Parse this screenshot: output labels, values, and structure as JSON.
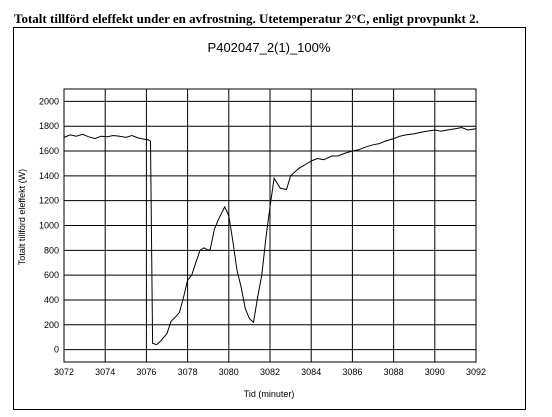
{
  "caption": "Totalt tillförd eleffekt under en avfrostning. Utetemperatur 2°C, enligt provpunkt 2.",
  "chart_data": {
    "type": "line",
    "title": "P402047_2(1)_100%",
    "xlabel": "Tid (minuter)",
    "ylabel": "Totalt tillförd eleffekt (W)",
    "xlim": [
      3072,
      3092
    ],
    "ylim": [
      -100,
      2100
    ],
    "x_ticks": [
      3072,
      3074,
      3076,
      3078,
      3080,
      3082,
      3084,
      3086,
      3088,
      3090,
      3092
    ],
    "y_ticks": [
      0,
      200,
      400,
      600,
      800,
      1000,
      1200,
      1400,
      1600,
      1800,
      2000
    ],
    "grid": true,
    "line_color": "#000000",
    "series": [
      {
        "x": [
          3072.0,
          3072.3,
          3072.6,
          3072.9,
          3073.2,
          3073.5,
          3073.8,
          3074.1,
          3074.4,
          3074.7,
          3075.0,
          3075.3,
          3075.6,
          3075.9,
          3076.1,
          3076.2,
          3076.3,
          3076.5,
          3076.7,
          3077.0,
          3077.2,
          3077.4,
          3077.6,
          3077.8,
          3078.0,
          3078.2,
          3078.4,
          3078.6,
          3078.8,
          3079.0,
          3079.1,
          3079.3,
          3079.5,
          3079.8,
          3080.0,
          3080.2,
          3080.4,
          3080.6,
          3080.8,
          3081.0,
          3081.2,
          3081.4,
          3081.6,
          3081.8,
          3082.0,
          3082.2,
          3082.5,
          3082.8,
          3083.0,
          3083.2,
          3083.4,
          3083.6,
          3083.8,
          3084.0,
          3084.3,
          3084.6,
          3085.0,
          3085.3,
          3085.6,
          3086.0,
          3086.3,
          3086.6,
          3087.0,
          3087.3,
          3087.6,
          3088.0,
          3088.3,
          3088.6,
          3089.0,
          3089.3,
          3089.6,
          3090.0,
          3090.3,
          3090.6,
          3091.0,
          3091.3,
          3091.6,
          3092.0
        ],
        "y": [
          1710,
          1730,
          1720,
          1735,
          1715,
          1700,
          1720,
          1715,
          1725,
          1720,
          1710,
          1725,
          1705,
          1695,
          1690,
          1680,
          50,
          40,
          70,
          130,
          230,
          260,
          300,
          420,
          560,
          600,
          700,
          800,
          820,
          800,
          810,
          970,
          1050,
          1150,
          1080,
          870,
          640,
          500,
          330,
          250,
          220,
          420,
          600,
          900,
          1150,
          1380,
          1300,
          1290,
          1400,
          1430,
          1460,
          1480,
          1500,
          1520,
          1540,
          1530,
          1560,
          1560,
          1580,
          1600,
          1610,
          1630,
          1650,
          1660,
          1680,
          1700,
          1720,
          1730,
          1740,
          1750,
          1760,
          1770,
          1760,
          1770,
          1780,
          1790,
          1770,
          1780
        ]
      }
    ]
  }
}
